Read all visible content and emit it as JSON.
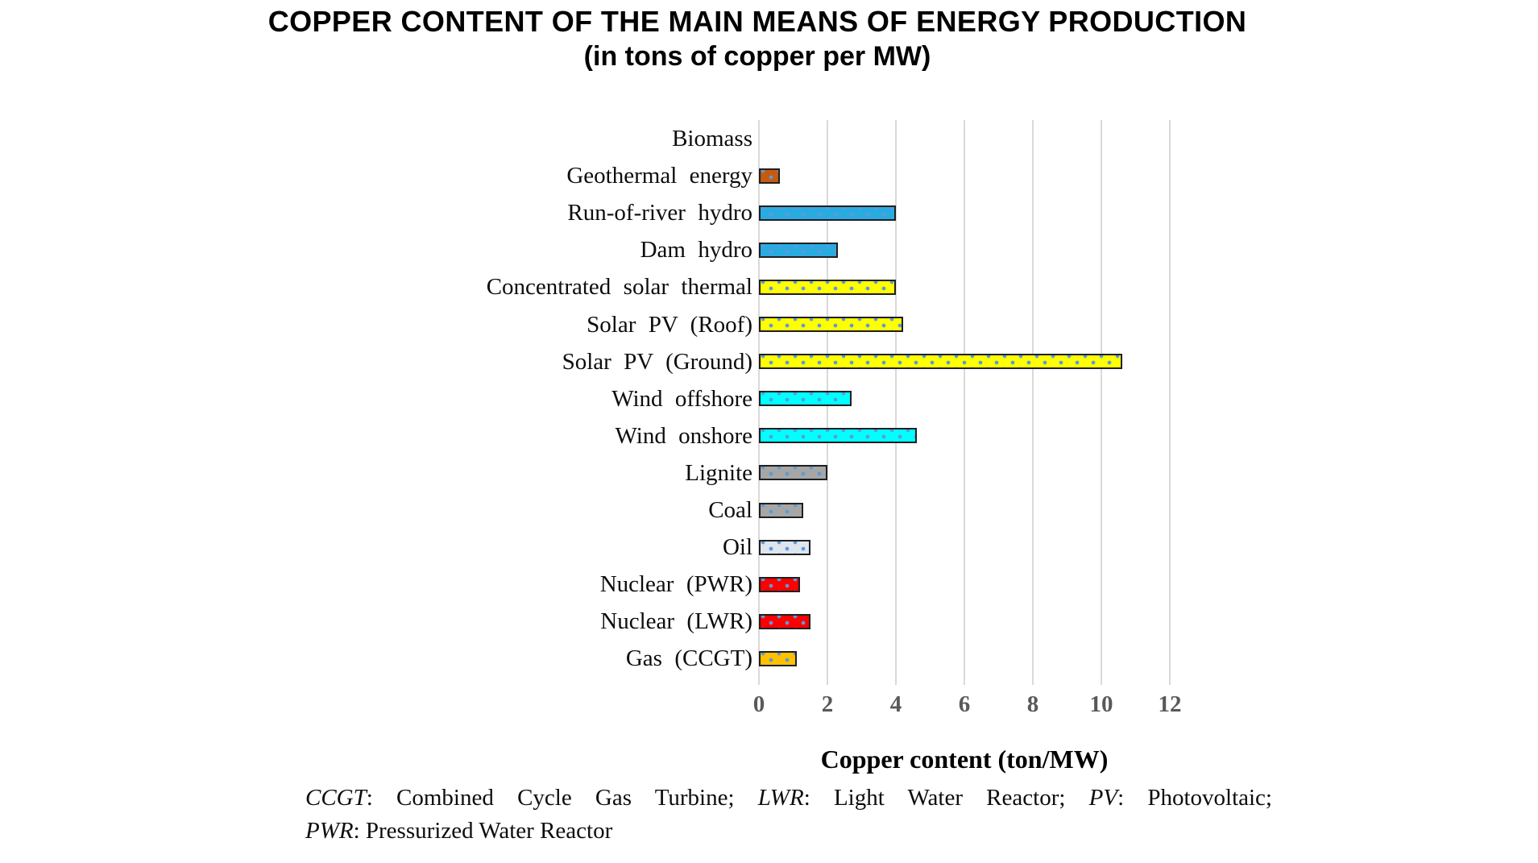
{
  "chart_data": {
    "type": "bar",
    "orientation": "horizontal",
    "title": "COPPER CONTENT OF THE MAIN MEANS OF ENERGY PRODUCTION",
    "subtitle": "(in tons of copper per MW)",
    "xlabel": "Copper content (ton/MW)",
    "xlim": [
      0,
      12
    ],
    "xticks": [
      0,
      2,
      4,
      6,
      8,
      10,
      12
    ],
    "grid": true,
    "legend": false,
    "bar_pattern": "dotted",
    "dot_color": "#5B9BD5",
    "bar_border_color": "#1f1f1f",
    "gridline_color": "#D9D9D9",
    "tick_label_color": "#595959",
    "categories": [
      "Biomass",
      "Geothermal energy",
      "Run-of-river hydro",
      "Dam hydro",
      "Concentrated solar thermal",
      "Solar PV (Roof)",
      "Solar PV (Ground)",
      "Wind offshore",
      "Wind onshore",
      "Lignite",
      "Coal",
      "Oil",
      "Nuclear (PWR)",
      "Nuclear (LWR)",
      "Gas (CCGT)"
    ],
    "values": [
      0,
      0.6,
      4.0,
      2.3,
      4.0,
      4.2,
      10.6,
      2.7,
      4.6,
      2.0,
      1.3,
      1.5,
      1.2,
      1.5,
      1.1
    ],
    "bar_colors": [
      "#FFFFFF",
      "#C55A11",
      "#29ABE2",
      "#29ABE2",
      "#FFFF00",
      "#FFFF00",
      "#FFFF00",
      "#00FFFF",
      "#00FFFF",
      "#A6A6A6",
      "#A6A6A6",
      "#DDE5EF",
      "#FF0000",
      "#FF0000",
      "#FFC000"
    ]
  },
  "footnote": {
    "lines": [
      [
        {
          "text": "CCGT",
          "italic": true
        },
        {
          "text": ": Combined Cycle Gas Turbine; ",
          "italic": false
        },
        {
          "text": "LWR",
          "italic": true
        },
        {
          "text": ": Light Water Reactor; ",
          "italic": false
        },
        {
          "text": "PV",
          "italic": true
        },
        {
          "text": ": Photovoltaic;",
          "italic": false
        }
      ],
      [
        {
          "text": "PWR",
          "italic": true
        },
        {
          "text": ": Pressurized Water Reactor",
          "italic": false
        }
      ]
    ]
  }
}
